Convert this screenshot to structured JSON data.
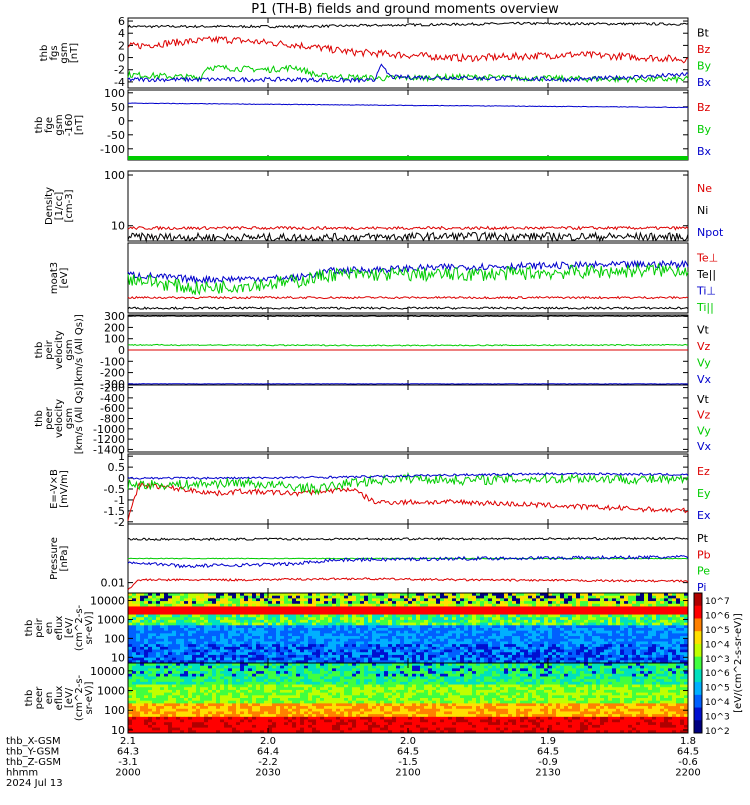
{
  "title": "P1 (TH-B) fields and ground moments overview",
  "chart_data": [
    {
      "type": "line",
      "ylabel": [
        "thb",
        "fgs",
        "gsm",
        "[nT]"
      ],
      "ticks": [
        -4,
        -2,
        0,
        2,
        4,
        6
      ],
      "ylim": [
        -5,
        6.5
      ],
      "series": [
        {
          "name": "Bt",
          "color": "#000000",
          "points": [
            [
              0,
              5.1
            ],
            [
              0.3,
              5.1
            ],
            [
              0.45,
              5.3
            ],
            [
              0.7,
              5.6
            ],
            [
              1,
              5.5
            ]
          ],
          "noise": 0.2
        },
        {
          "name": "Bz",
          "color": "#dd0000",
          "points": [
            [
              0,
              1.8
            ],
            [
              0.1,
              2.6
            ],
            [
              0.17,
              3.0
            ],
            [
              0.3,
              2.1
            ],
            [
              0.4,
              0.9
            ],
            [
              0.6,
              -0.1
            ],
            [
              0.8,
              0.5
            ],
            [
              1,
              -0.3
            ]
          ],
          "noise": 0.6
        },
        {
          "name": "By",
          "color": "#00cc00",
          "points": [
            [
              0,
              -2.8
            ],
            [
              0.13,
              -3.3
            ],
            [
              0.14,
              -1.6
            ],
            [
              0.25,
              -2.0
            ],
            [
              0.3,
              -1.6
            ],
            [
              0.34,
              -3.0
            ],
            [
              0.45,
              -3.4
            ],
            [
              0.6,
              -3.2
            ],
            [
              0.8,
              -3.5
            ],
            [
              1,
              -3.6
            ]
          ],
          "noise": 0.5
        },
        {
          "name": "Bx",
          "color": "#0000cc",
          "points": [
            [
              0,
              -3.6
            ],
            [
              0.3,
              -3.6
            ],
            [
              0.44,
              -3.8
            ],
            [
              0.45,
              -1.2
            ],
            [
              0.47,
              -3.2
            ],
            [
              0.8,
              -3.6
            ],
            [
              1,
              -2.8
            ]
          ],
          "noise": 0.35
        }
      ]
    },
    {
      "type": "line",
      "ylabel": [
        "thb",
        "fge",
        "gsm",
        "-160",
        "[nT]"
      ],
      "ticks": [
        -100,
        -50,
        0,
        50,
        100
      ],
      "ylim": [
        -140,
        110
      ],
      "series": [
        {
          "name": "Bz",
          "color": "#dd0000",
          "points": [
            [
              0,
              -133
            ],
            [
              1,
              -133
            ]
          ],
          "noise": 0
        },
        {
          "name": "By",
          "color": "#00cc00",
          "points": [
            [
              0,
              -133
            ],
            [
              1,
              -133
            ]
          ],
          "noise": 0
        },
        {
          "name": "Bx",
          "color": "#0000cc",
          "points": [
            [
              0,
              63
            ],
            [
              0.5,
              55
            ],
            [
              1,
              48
            ]
          ],
          "noise": 1
        }
      ]
    },
    {
      "type": "line",
      "scale": "log",
      "ylabel": [
        "Density",
        "[1/cc]",
        "[cm-3]"
      ],
      "ticks": [
        10,
        100
      ],
      "ylim": [
        5,
        120
      ],
      "series": [
        {
          "name": "Ne",
          "color": "#dd0000",
          "points": [
            [
              0,
              9
            ],
            [
              1,
              9
            ]
          ],
          "noise": 0.03
        },
        {
          "name": "Ni",
          "color": "#000000",
          "points": [
            [
              0,
              6
            ],
            [
              0.3,
              5.8
            ],
            [
              0.6,
              6.2
            ],
            [
              1,
              6
            ]
          ],
          "noise": 0.08
        },
        {
          "name": "Npot",
          "color": "#0000cc",
          "points": [],
          "noise": 0
        }
      ]
    },
    {
      "type": "line",
      "ylabel": [
        "moat3",
        "[eV]"
      ],
      "ticks": [],
      "ylim": [
        0,
        100
      ],
      "series": [
        {
          "name": "Te⊥",
          "color": "#dd0000",
          "points": [
            [
              0,
              22
            ],
            [
              1,
              22
            ]
          ],
          "noise": 1.5
        },
        {
          "name": "Te||",
          "color": "#000000",
          "points": [
            [
              0,
              7
            ],
            [
              1,
              7
            ]
          ],
          "noise": 1.5
        },
        {
          "name": "Ti⊥",
          "color": "#0000cc",
          "points": [
            [
              0,
              55
            ],
            [
              0.12,
              48
            ],
            [
              0.3,
              50
            ],
            [
              0.36,
              60
            ],
            [
              0.6,
              66
            ],
            [
              1,
              70
            ]
          ],
          "noise": 5
        },
        {
          "name": "Ti||",
          "color": "#00cc00",
          "points": [
            [
              0,
              50
            ],
            [
              0.12,
              35
            ],
            [
              0.3,
              45
            ],
            [
              0.36,
              55
            ],
            [
              0.6,
              55
            ],
            [
              1,
              62
            ]
          ],
          "noise": 10
        }
      ]
    },
    {
      "type": "line",
      "ylabel": [
        "thb",
        "peir",
        "velocity",
        "gsm",
        "[km/s (All Qs)]"
      ],
      "ticks": [
        -300,
        -200,
        -100,
        0,
        100,
        200,
        300
      ],
      "ylim": [
        -310,
        310
      ],
      "series": [
        {
          "name": "Vt",
          "color": "#000000",
          "points": [
            [
              0,
              300
            ],
            [
              1,
              300
            ]
          ],
          "noise": 3
        },
        {
          "name": "Vz",
          "color": "#dd0000",
          "points": [
            [
              0,
              0
            ],
            [
              1,
              0
            ]
          ],
          "noise": 0
        },
        {
          "name": "Vy",
          "color": "#00cc00",
          "points": [
            [
              0,
              45
            ],
            [
              0.5,
              40
            ],
            [
              1,
              45
            ]
          ],
          "noise": 5
        },
        {
          "name": "Vx",
          "color": "#0000cc",
          "points": [
            [
              0,
              -300
            ],
            [
              1,
              -300
            ]
          ],
          "noise": 2
        }
      ]
    },
    {
      "type": "line",
      "ylabel": [
        "thb",
        "peer",
        "velocity",
        "gsm",
        "[km/s (All Qs)]"
      ],
      "ticks": [
        -1400,
        -1200,
        -1000,
        -800,
        -600,
        -400,
        -200
      ],
      "ylim": [
        -1450,
        -150
      ],
      "series": [
        {
          "name": "Vt",
          "color": "#000000",
          "points": [],
          "noise": 0
        },
        {
          "name": "Vz",
          "color": "#dd0000",
          "points": [],
          "noise": 0
        },
        {
          "name": "Vy",
          "color": "#00cc00",
          "points": [],
          "noise": 0
        },
        {
          "name": "Vx",
          "color": "#0000cc",
          "points": [],
          "noise": 0
        }
      ]
    },
    {
      "type": "line",
      "ylabel": [
        "E=-V×B",
        "[mV/m]"
      ],
      "ticks": [
        -2.0,
        -1.5,
        -1.0,
        -0.5,
        0.0,
        0.5,
        1.0
      ],
      "ylim": [
        -2.1,
        1.1
      ],
      "series": [
        {
          "name": "Ez",
          "color": "#dd0000",
          "points": [
            [
              0,
              -1.9
            ],
            [
              0.02,
              -0.3
            ],
            [
              0.06,
              -0.4
            ],
            [
              0.16,
              -0.7
            ],
            [
              0.2,
              -0.6
            ],
            [
              0.3,
              -0.7
            ],
            [
              0.4,
              -0.5
            ],
            [
              0.44,
              -1.1
            ],
            [
              0.6,
              -1.1
            ],
            [
              0.8,
              -1.3
            ],
            [
              1,
              -1.5
            ]
          ],
          "noise": 0.12
        },
        {
          "name": "Ey",
          "color": "#00cc00",
          "points": [
            [
              0,
              -0.3
            ],
            [
              0.1,
              -0.3
            ],
            [
              0.2,
              -0.2
            ],
            [
              0.34,
              -0.5
            ],
            [
              0.4,
              -0.2
            ],
            [
              0.5,
              0.0
            ],
            [
              0.6,
              -0.1
            ],
            [
              0.8,
              0.0
            ],
            [
              1,
              -0.1
            ]
          ],
          "noise": 0.22
        },
        {
          "name": "Ex",
          "color": "#0000cc",
          "points": [
            [
              0,
              0.0
            ],
            [
              0.2,
              0.0
            ],
            [
              0.4,
              0.05
            ],
            [
              0.6,
              0.15
            ],
            [
              0.8,
              0.2
            ],
            [
              1,
              0.15
            ]
          ],
          "noise": 0.05
        }
      ]
    },
    {
      "type": "line",
      "scale": "log",
      "ylabel": [
        "Pressure",
        "[nPa]"
      ],
      "ticks": [
        0.01
      ],
      "ylim": [
        0.005,
        0.5
      ],
      "series": [
        {
          "name": "Pt",
          "color": "#000000",
          "points": [
            [
              0,
              0.18
            ],
            [
              1,
              0.19
            ]
          ],
          "noise": 0.03
        },
        {
          "name": "Pb",
          "color": "#dd0000",
          "points": [
            [
              0,
              0.006
            ],
            [
              0.02,
              0.012
            ],
            [
              0.2,
              0.012
            ],
            [
              0.4,
              0.013
            ],
            [
              0.6,
              0.012
            ],
            [
              1,
              0.011
            ]
          ],
          "noise": 0.03
        },
        {
          "name": "Pe",
          "color": "#00cc00",
          "points": [
            [
              0,
              0.05
            ],
            [
              1,
              0.05
            ]
          ],
          "noise": 0.01
        },
        {
          "name": "Pi",
          "color": "#0000cc",
          "points": [
            [
              0,
              0.04
            ],
            [
              0.1,
              0.03
            ],
            [
              0.3,
              0.035
            ],
            [
              0.36,
              0.045
            ],
            [
              0.6,
              0.05
            ],
            [
              1,
              0.055
            ]
          ],
          "noise": 0.05
        }
      ]
    },
    {
      "type": "heatmap",
      "ylabel": [
        "thb",
        "peir",
        "en",
        "eflux",
        "[eV/",
        "(cm^2-s-",
        "sr-eV)]"
      ],
      "ticks": [
        10,
        100,
        1000,
        10000
      ],
      "ylim": [
        5,
        25000
      ]
    },
    {
      "type": "heatmap",
      "ylabel": [
        "thb",
        "peer",
        "en",
        "eflux",
        "[eV/",
        "(cm^2-s-",
        "sr-eV)]"
      ],
      "ticks": [
        10,
        100,
        1000,
        10000
      ],
      "ylim": [
        7,
        25000
      ]
    }
  ],
  "colorbar": {
    "ticks": [
      "10^7",
      "10^6",
      "10^5",
      "10^4",
      "10^3",
      "10^6",
      "10^5",
      "10^4",
      "10^3",
      "10^2"
    ],
    "label": "[eV/(cm^2-s-sr-eV)]"
  },
  "footer": {
    "rows": [
      {
        "label": "thb_X-GSM",
        "values": [
          "2.1",
          "2.0",
          "2.0",
          "1.9",
          "1.8"
        ]
      },
      {
        "label": "thb_Y-GSM",
        "values": [
          "64.3",
          "64.4",
          "64.5",
          "64.5",
          "64.5"
        ]
      },
      {
        "label": "thb_Z-GSM",
        "values": [
          "-3.1",
          "-2.2",
          "-1.5",
          "-0.9",
          "-0.6"
        ]
      },
      {
        "label": "hhmm",
        "values": [
          "2000",
          "2030",
          "2100",
          "2130",
          "2200"
        ]
      }
    ],
    "date": "2024 Jul 13"
  }
}
